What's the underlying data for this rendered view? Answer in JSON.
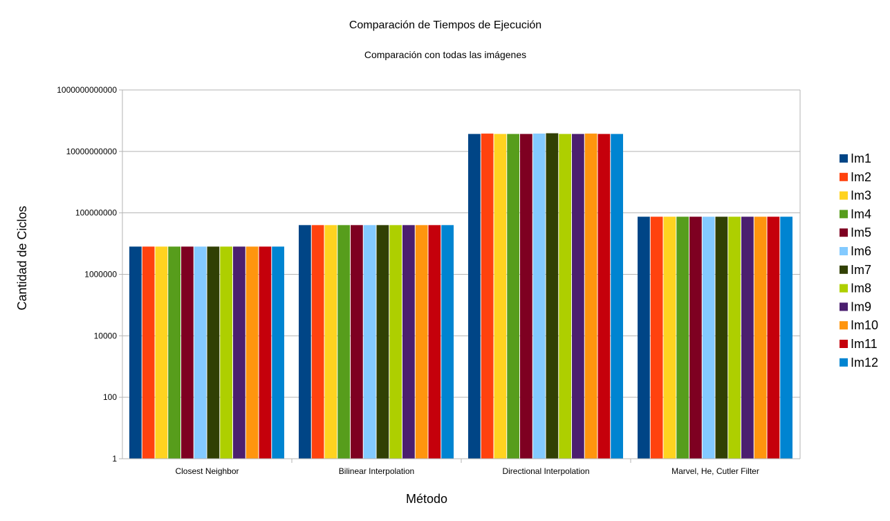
{
  "chart_data": {
    "type": "bar",
    "title": "Comparación de Tiempos de Ejecución",
    "subtitle": "Comparación con todas las imágenes",
    "xlabel": "Método",
    "ylabel": "Cantidad de Ciclos",
    "yscale": "log",
    "ylim": [
      1,
      1000000000000
    ],
    "yticks": [
      "1",
      "100",
      "10000",
      "1000000",
      "100000000",
      "10000000000",
      "1000000000000"
    ],
    "grid": true,
    "legend_position": "right",
    "categories": [
      "Closest Neighbor",
      "Bilinear Interpolation",
      "Directional Interpolation",
      "Marvel, He, Cutler Filter"
    ],
    "series": [
      {
        "name": "Im1",
        "color": "#004586",
        "values": [
          8000000,
          40000000,
          37000000000,
          75000000
        ]
      },
      {
        "name": "Im2",
        "color": "#ff420e",
        "values": [
          8000000,
          40000000,
          38000000000,
          75000000
        ]
      },
      {
        "name": "Im3",
        "color": "#ffd320",
        "values": [
          8000000,
          40000000,
          37000000000,
          75000000
        ]
      },
      {
        "name": "Im4",
        "color": "#579d1c",
        "values": [
          8000000,
          40000000,
          37000000000,
          75000000
        ]
      },
      {
        "name": "Im5",
        "color": "#7e0021",
        "values": [
          8000000,
          40000000,
          37000000000,
          75000000
        ]
      },
      {
        "name": "Im6",
        "color": "#83caff",
        "values": [
          8000000,
          40000000,
          38000000000,
          75000000
        ]
      },
      {
        "name": "Im7",
        "color": "#314004",
        "values": [
          8000000,
          40000000,
          39000000000,
          75000000
        ]
      },
      {
        "name": "Im8",
        "color": "#aecf00",
        "values": [
          8000000,
          40000000,
          37000000000,
          75000000
        ]
      },
      {
        "name": "Im9",
        "color": "#4b1f6f",
        "values": [
          8000000,
          40000000,
          37000000000,
          75000000
        ]
      },
      {
        "name": "Im10",
        "color": "#ff950e",
        "values": [
          8000000,
          40000000,
          38000000000,
          75000000
        ]
      },
      {
        "name": "Im11",
        "color": "#c5000b",
        "values": [
          8000000,
          40000000,
          37000000000,
          75000000
        ]
      },
      {
        "name": "Im12",
        "color": "#0084d1",
        "values": [
          8000000,
          40000000,
          37000000000,
          75000000
        ]
      }
    ]
  }
}
